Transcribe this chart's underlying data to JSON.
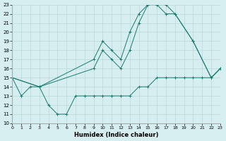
{
  "xlabel": "Humidex (Indice chaleur)",
  "background_color": "#d6eef0",
  "grid_color": "#b8d8dc",
  "line_color": "#1a7a6e",
  "xlim": [
    0,
    23
  ],
  "ylim": [
    10,
    23
  ],
  "yticks": [
    10,
    11,
    12,
    13,
    14,
    15,
    16,
    17,
    18,
    19,
    20,
    21,
    22,
    23
  ],
  "xticks": [
    0,
    1,
    2,
    3,
    4,
    5,
    6,
    7,
    8,
    9,
    10,
    11,
    12,
    13,
    14,
    15,
    16,
    17,
    18,
    19,
    20,
    21,
    22,
    23
  ],
  "line1_x": [
    0,
    1,
    2,
    3,
    4,
    5,
    6,
    7,
    8,
    9,
    10,
    11,
    12,
    13,
    14,
    15,
    16,
    17,
    18,
    19,
    20,
    21,
    22,
    23
  ],
  "line1_y": [
    15,
    13,
    14,
    14,
    12,
    11,
    11,
    13,
    13,
    13,
    13,
    13,
    13,
    13,
    14,
    14,
    15,
    15,
    15,
    15,
    15,
    15,
    15,
    16
  ],
  "line2_x": [
    0,
    3,
    9,
    10,
    11,
    12,
    13,
    14,
    15,
    16,
    17,
    18,
    20,
    22,
    23
  ],
  "line2_y": [
    15,
    14,
    17,
    19,
    18,
    17,
    20,
    22,
    23,
    23,
    23,
    22,
    19,
    15,
    16
  ],
  "line3_x": [
    0,
    3,
    9,
    10,
    11,
    12,
    13,
    14,
    15,
    16,
    17,
    18,
    20,
    22,
    23
  ],
  "line3_y": [
    15,
    14,
    16,
    18,
    17,
    16,
    18,
    21,
    23,
    23,
    22,
    22,
    19,
    15,
    16
  ]
}
